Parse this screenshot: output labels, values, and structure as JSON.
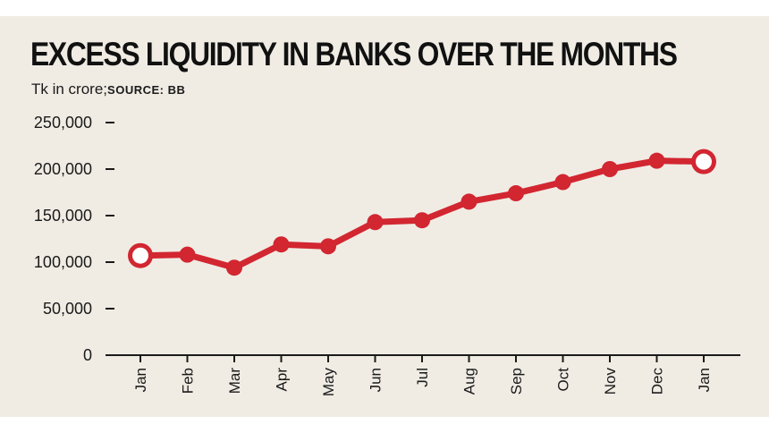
{
  "title": "EXCESS LIQUIDITY IN BANKS OVER THE MONTHS",
  "subtitle_unit": "Tk in crore;",
  "subtitle_source": "SOURCE: BB",
  "colors": {
    "line": "#d22631",
    "background": "#f0ece4",
    "axis": "#1a1a1a",
    "text": "#111111"
  },
  "chart_data": {
    "type": "line",
    "title": "EXCESS LIQUIDITY IN BANKS OVER THE MONTHS",
    "categories": [
      "Jan",
      "Feb",
      "Mar",
      "Apr",
      "May",
      "Jun",
      "Jul",
      "Aug",
      "Sep",
      "Oct",
      "Nov",
      "Dec",
      "Jan"
    ],
    "y_tick_labels": [
      "0",
      "50,000",
      "100,000",
      "150,000",
      "200,000",
      "250,000"
    ],
    "y_ticks": [
      0,
      50000,
      100000,
      150000,
      200000,
      250000
    ],
    "ylim": [
      0,
      250000
    ],
    "series": [
      {
        "values": [
          107000,
          108000,
          94000,
          119000,
          117000,
          143000,
          145000,
          165000,
          174000,
          186000,
          200000,
          209000,
          208000
        ]
      }
    ],
    "highlighted_points": [
      "first",
      "last"
    ],
    "grid": false,
    "legend": "none"
  }
}
